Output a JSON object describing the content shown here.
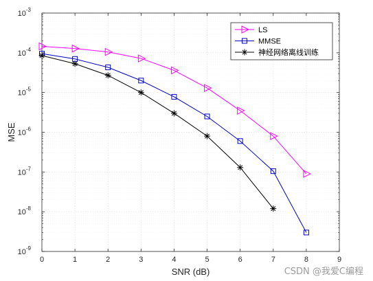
{
  "chart_data": {
    "type": "line",
    "xlabel": "SNR (dB)",
    "ylabel": "MSE",
    "xlim": [
      0,
      9
    ],
    "ylim_log10": [
      -9,
      -3
    ],
    "y_scale": "log",
    "grid": true,
    "legend_position": "top-right",
    "x_ticks": [
      "0",
      "1",
      "2",
      "3",
      "4",
      "5",
      "6",
      "7",
      "8",
      "9"
    ],
    "series": [
      {
        "name": "LS",
        "color": "#ff00ff",
        "marker": "triangle-right",
        "x": [
          0,
          1,
          2,
          3,
          4,
          5,
          6,
          7,
          8
        ],
        "y": [
          0.000145,
          0.000128,
          0.000105,
          7.2e-05,
          3.6e-05,
          1.3e-05,
          3.5e-06,
          8e-07,
          9e-08
        ]
      },
      {
        "name": "MMSE",
        "color": "#0000cc",
        "marker": "square",
        "x": [
          0,
          1,
          2,
          3,
          4,
          5,
          6,
          7,
          8
        ],
        "y": [
          9.5e-05,
          7e-05,
          4.3e-05,
          2e-05,
          7.8e-06,
          2.5e-06,
          6e-07,
          1.05e-07,
          3e-09
        ]
      },
      {
        "name": "神经网络离线训练",
        "color": "#000000",
        "marker": "asterisk",
        "x": [
          0,
          1,
          2,
          3,
          4,
          5,
          6,
          7
        ],
        "y": [
          8.5e-05,
          5.3e-05,
          2.7e-05,
          1e-05,
          3e-06,
          8e-07,
          1.3e-07,
          1.2e-08
        ]
      }
    ]
  },
  "watermark": "CSDN @我爱C编程"
}
